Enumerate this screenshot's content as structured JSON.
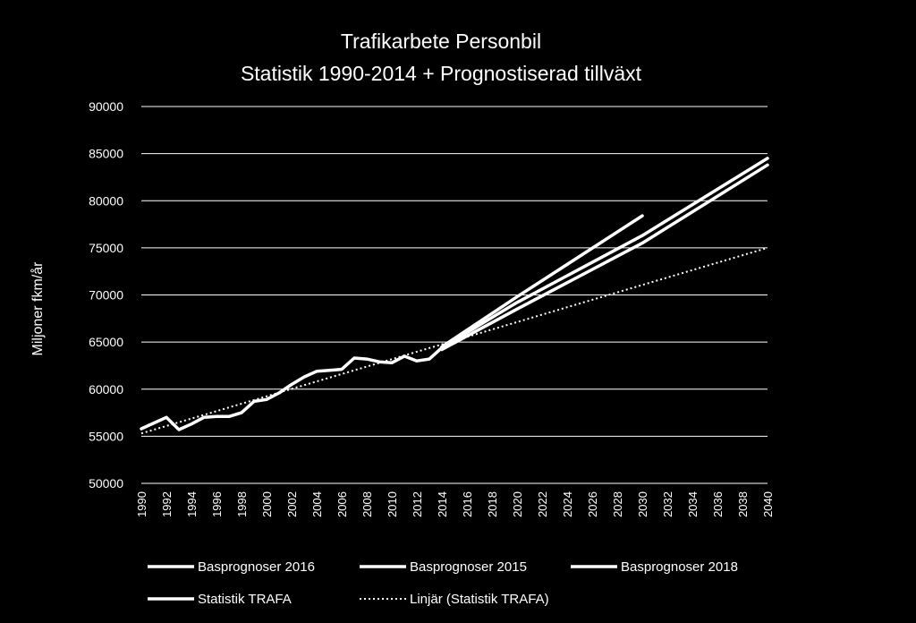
{
  "chart_data": {
    "type": "line",
    "title": "Trafikarbete Personbil",
    "subtitle": "Statistik 1990-2014 + Prognostiserad tillväxt",
    "xlabel": "",
    "ylabel": "Miljoner fkm/år",
    "ylim": [
      50000,
      90000
    ],
    "xlim": [
      1990,
      2040
    ],
    "y_ticks": [
      "50000",
      "55000",
      "60000",
      "65000",
      "70000",
      "75000",
      "80000",
      "85000",
      "90000"
    ],
    "x_ticks": [
      "1990",
      "1992",
      "1994",
      "1996",
      "1998",
      "2000",
      "2002",
      "2004",
      "2006",
      "2008",
      "2010",
      "2012",
      "2014",
      "2016",
      "2018",
      "2020",
      "2022",
      "2024",
      "2026",
      "2028",
      "2030",
      "2032",
      "2034",
      "2036",
      "2038",
      "2040"
    ],
    "grid": true,
    "legend_position": "bottom",
    "colors": {
      "background": "#000000",
      "line": "#ffffff",
      "grid": "#ffffff",
      "text": "#ffffff"
    },
    "series": [
      {
        "name": "Basprognoser 2016",
        "style": "solid",
        "x": [
          2014,
          2020,
          2030
        ],
        "y": [
          64500,
          69800,
          78400
        ]
      },
      {
        "name": "Basprognoser 2015",
        "style": "solid",
        "x": [
          2014,
          2020,
          2030,
          2040
        ],
        "y": [
          64400,
          69200,
          76300,
          84500
        ]
      },
      {
        "name": "Basprognoser 2018",
        "style": "solid",
        "x": [
          2014,
          2020,
          2030,
          2040
        ],
        "y": [
          64200,
          68500,
          75500,
          83800
        ]
      },
      {
        "name": "Statistik TRAFA",
        "style": "solid",
        "x": [
          1990,
          1991,
          1992,
          1993,
          1994,
          1995,
          1996,
          1997,
          1998,
          1999,
          2000,
          2001,
          2002,
          2003,
          2004,
          2005,
          2006,
          2007,
          2008,
          2009,
          2010,
          2011,
          2012,
          2013,
          2014
        ],
        "y": [
          55800,
          56400,
          57000,
          55700,
          56300,
          57000,
          57100,
          57100,
          57500,
          58700,
          58900,
          59600,
          60500,
          61300,
          61900,
          62000,
          62100,
          63300,
          63200,
          62900,
          62800,
          63500,
          63000,
          63200,
          64400
        ]
      },
      {
        "name": "Linjär (Statistik TRAFA)",
        "style": "dotted",
        "x": [
          1990,
          2040
        ],
        "y": [
          55300,
          75000
        ]
      }
    ]
  }
}
